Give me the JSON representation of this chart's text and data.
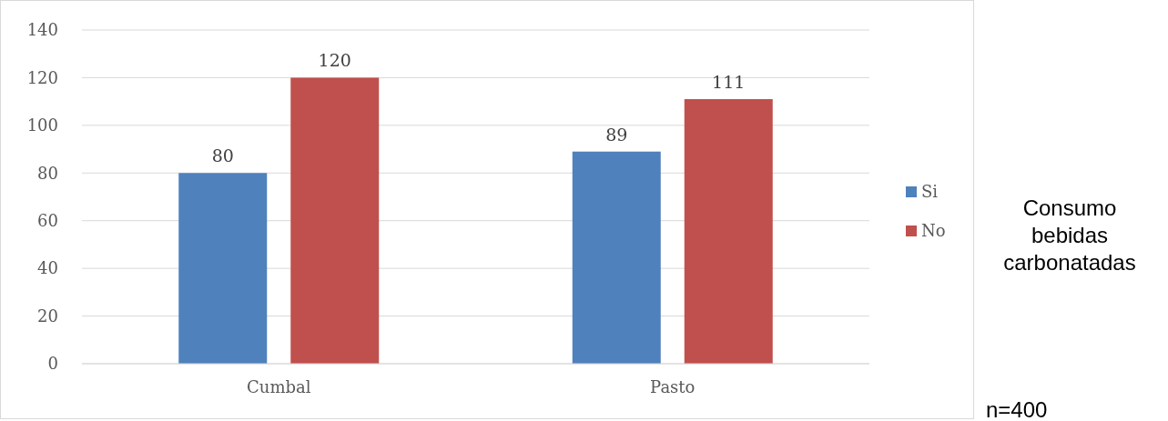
{
  "chart_data": {
    "type": "bar",
    "title": "Consumo bebidas carbonatadas",
    "annotations": [
      "n=400"
    ],
    "categories": [
      "Cumbal",
      "Pasto"
    ],
    "series": [
      {
        "name": "Si",
        "color": "#4f81bd",
        "values": [
          80,
          89
        ]
      },
      {
        "name": "No",
        "color": "#c0504d",
        "values": [
          120,
          111
        ]
      }
    ],
    "ylim": [
      0,
      140
    ],
    "yticks": [
      0,
      20,
      40,
      60,
      80,
      100,
      120,
      140
    ],
    "grid": "y",
    "legend": "right",
    "data_labels": true
  }
}
